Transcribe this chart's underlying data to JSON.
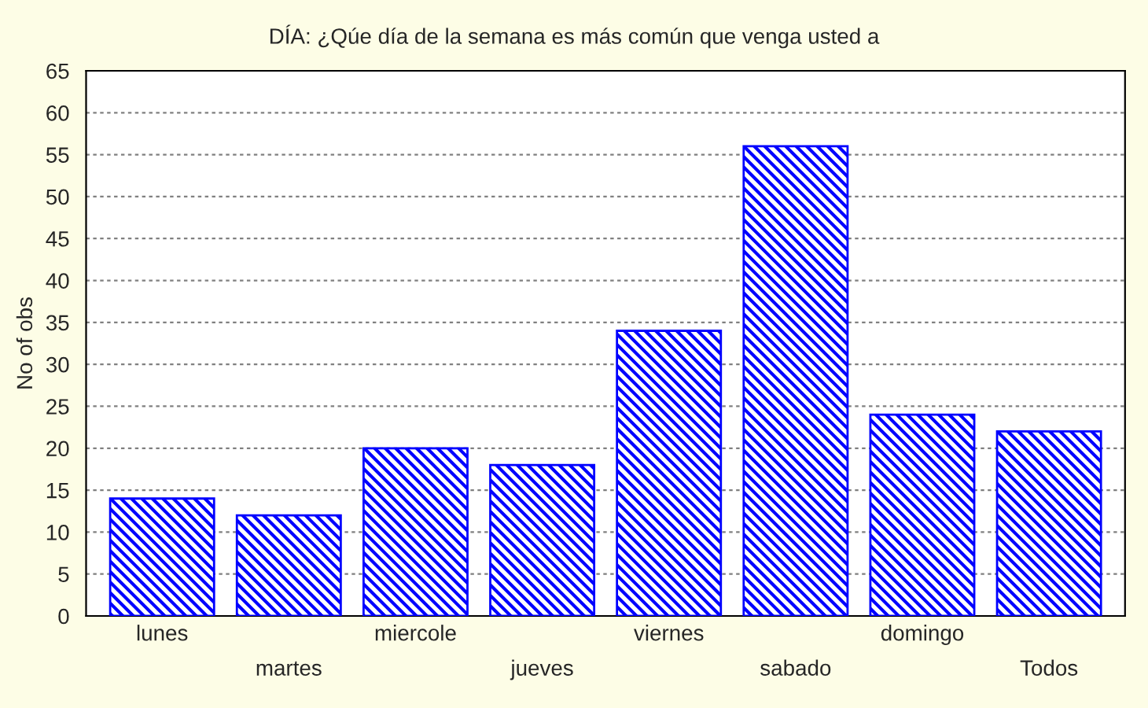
{
  "chart_data": {
    "type": "bar",
    "title": "DÍA: ¿Qúe día de la semana es más común que venga usted a",
    "ylabel": "No of obs",
    "categories": [
      "lunes",
      "martes",
      "miercole",
      "jueves",
      "viernes",
      "sabado",
      "domingo",
      "Todos"
    ],
    "values": [
      14,
      12,
      20,
      18,
      34,
      56,
      24,
      22
    ],
    "color": "#0000ff",
    "ylim": [
      0,
      65
    ],
    "yticks": [
      0,
      5,
      10,
      15,
      20,
      25,
      30,
      35,
      40,
      45,
      50,
      55,
      60,
      65
    ],
    "grid": "y"
  }
}
